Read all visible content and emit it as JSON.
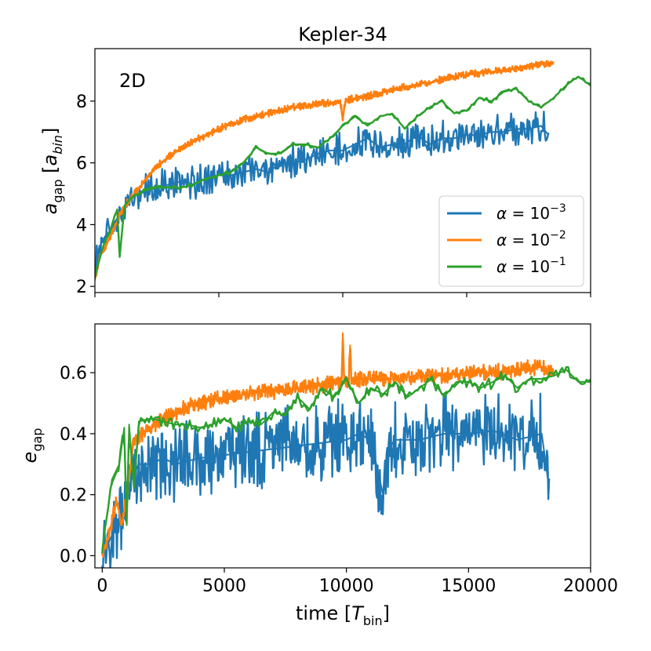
{
  "chart_data": [
    {
      "type": "line",
      "panel": "top",
      "title": "Kepler-34",
      "annotation": "2D",
      "xlabel": "",
      "ylabel": {
        "base": "a",
        "sub1": "gap",
        "bracket_open": " [",
        "unit_base": "a",
        "unit_sub": "bin",
        "bracket_close": "]"
      },
      "xlim": [
        0,
        20000
      ],
      "ylim": [
        1.8,
        9.7
      ],
      "xticks": [
        0,
        5000,
        10000,
        15000,
        20000
      ],
      "yticks": [
        2,
        4,
        6,
        8
      ],
      "ytick_labels": [
        "2",
        "4",
        "6",
        "8"
      ],
      "grid": false,
      "legend_position": "lower-right",
      "series": [
        {
          "name": "α = 10⁻³",
          "legend": {
            "alpha": "α",
            "equals": " = 10",
            "exponent": "−3"
          },
          "color": "#1f77b4",
          "x": [
            0,
            200,
            400,
            600,
            800,
            1000,
            1200,
            1500,
            1800,
            2100,
            2500,
            3000,
            3500,
            4000,
            4500,
            5000,
            5500,
            6000,
            6500,
            7000,
            7500,
            8000,
            8500,
            9000,
            9500,
            10000,
            10500,
            11000,
            11500,
            12000,
            12500,
            13000,
            13500,
            14000,
            14500,
            15000,
            15500,
            16000,
            16500,
            17000,
            17500,
            18000,
            18300
          ],
          "y": [
            2.5,
            3.3,
            3.6,
            3.8,
            4.1,
            4.3,
            4.6,
            4.9,
            5.0,
            5.1,
            5.2,
            5.3,
            5.4,
            5.3,
            5.5,
            5.6,
            5.6,
            5.7,
            5.8,
            5.7,
            6.0,
            6.0,
            6.1,
            6.3,
            6.4,
            6.4,
            6.6,
            6.8,
            6.5,
            6.6,
            6.6,
            6.9,
            6.6,
            6.8,
            6.8,
            6.9,
            6.9,
            7.0,
            7.0,
            7.1,
            7.1,
            7.2,
            6.9
          ],
          "noise": 0.42,
          "period": 110
        },
        {
          "name": "α = 10⁻²",
          "legend": {
            "alpha": "α",
            "equals": " = 10",
            "exponent": "−2"
          },
          "color": "#ff7f0e",
          "x": [
            0,
            200,
            500,
            800,
            1000,
            1300,
            1600,
            2000,
            2500,
            3000,
            3500,
            4000,
            4500,
            5000,
            5500,
            6000,
            6500,
            7000,
            7500,
            8000,
            8500,
            9000,
            9500,
            9900,
            10000,
            10100,
            10500,
            11000,
            11500,
            12000,
            12500,
            13000,
            13500,
            14000,
            14500,
            15000,
            15500,
            16000,
            16500,
            17000,
            17500,
            18000,
            18500
          ],
          "y": [
            2.2,
            3.0,
            3.4,
            3.9,
            4.3,
            4.7,
            5.0,
            5.4,
            5.9,
            6.2,
            6.5,
            6.7,
            6.9,
            7.1,
            7.25,
            7.4,
            7.5,
            7.6,
            7.7,
            7.8,
            7.85,
            7.9,
            7.95,
            8.0,
            7.4,
            8.0,
            8.1,
            8.15,
            8.25,
            8.35,
            8.45,
            8.55,
            8.6,
            8.7,
            8.8,
            8.85,
            8.9,
            8.95,
            9.0,
            9.05,
            9.1,
            9.2,
            9.2
          ],
          "noise": 0.09,
          "period": 60
        },
        {
          "name": "α = 10⁻¹",
          "legend": {
            "alpha": "α",
            "equals": " = 10",
            "exponent": "−1"
          },
          "color": "#2ca02c",
          "x": [
            0,
            300,
            600,
            900,
            1000,
            1200,
            1500,
            2000,
            2500,
            3000,
            3500,
            4000,
            4500,
            5000,
            5500,
            6000,
            6500,
            7000,
            7500,
            8000,
            8500,
            9000,
            9500,
            10000,
            10500,
            11000,
            11500,
            12000,
            12500,
            13000,
            13500,
            14000,
            14500,
            15000,
            15500,
            16000,
            16500,
            17000,
            17500,
            18000,
            18500,
            19000,
            19500,
            20000
          ],
          "y": [
            2.3,
            3.2,
            3.8,
            4.5,
            3.0,
            4.6,
            4.9,
            5.1,
            5.2,
            5.2,
            5.2,
            5.3,
            5.5,
            5.6,
            5.7,
            6.0,
            6.5,
            6.3,
            6.3,
            6.6,
            6.6,
            6.5,
            6.8,
            7.2,
            7.5,
            7.2,
            7.5,
            7.6,
            7.1,
            7.5,
            7.8,
            8.0,
            7.6,
            7.7,
            8.1,
            8.0,
            8.3,
            8.4,
            8.0,
            7.8,
            8.1,
            8.5,
            8.8,
            8.5
          ],
          "noise": 0.05,
          "period": 300
        }
      ]
    },
    {
      "type": "line",
      "panel": "bottom",
      "title": "",
      "xlabel": {
        "base": "time [",
        "t": "T",
        "sub": "bin",
        "close": "]"
      },
      "ylabel": {
        "base": "e",
        "sub": "gap"
      },
      "xlim": [
        -300,
        20000
      ],
      "ylim": [
        -0.04,
        0.76
      ],
      "xticks": [
        0,
        5000,
        10000,
        15000,
        20000
      ],
      "xtick_labels": [
        "0",
        "5000",
        "10000",
        "15000",
        "20000"
      ],
      "yticks": [
        0.0,
        0.2,
        0.4,
        0.6
      ],
      "ytick_labels": [
        "0.0",
        "0.2",
        "0.4",
        "0.6"
      ],
      "grid": false,
      "series": [
        {
          "name": "α = 10⁻³",
          "color": "#1f77b4",
          "x": [
            0,
            300,
            600,
            900,
            1200,
            1500,
            2000,
            2500,
            3000,
            3500,
            4000,
            5000,
            6000,
            7000,
            8000,
            9000,
            10000,
            10500,
            11000,
            11500,
            11800,
            12000,
            13000,
            14000,
            15000,
            16000,
            17000,
            18000,
            18300
          ],
          "y": [
            0.0,
            0.05,
            0.1,
            0.15,
            0.25,
            0.3,
            0.3,
            0.32,
            0.3,
            0.31,
            0.32,
            0.33,
            0.34,
            0.35,
            0.36,
            0.37,
            0.38,
            0.4,
            0.38,
            0.2,
            0.36,
            0.38,
            0.38,
            0.4,
            0.4,
            0.41,
            0.38,
            0.4,
            0.22
          ],
          "noise": 0.1,
          "period": 90
        },
        {
          "name": "α = 10⁻²",
          "color": "#ff7f0e",
          "x": [
            0,
            300,
            600,
            800,
            1000,
            1300,
            1600,
            2000,
            2500,
            3000,
            3500,
            4000,
            5000,
            6000,
            7000,
            8000,
            9000,
            9800,
            9850,
            9900,
            10000,
            10100,
            10150,
            10200,
            10400,
            11000,
            12000,
            13000,
            14000,
            15000,
            16000,
            17000,
            18000,
            18500
          ],
          "y": [
            0.0,
            0.08,
            0.18,
            0.1,
            0.2,
            0.38,
            0.4,
            0.42,
            0.45,
            0.47,
            0.49,
            0.5,
            0.52,
            0.53,
            0.54,
            0.55,
            0.56,
            0.57,
            0.73,
            0.58,
            0.57,
            0.58,
            0.69,
            0.58,
            0.58,
            0.58,
            0.58,
            0.59,
            0.59,
            0.6,
            0.6,
            0.61,
            0.62,
            0.6
          ],
          "noise": 0.02,
          "period": 50
        },
        {
          "name": "α = 10⁻¹",
          "color": "#2ca02c",
          "x": [
            0,
            400,
            700,
            900,
            1000,
            1100,
            1300,
            1500,
            2000,
            2500,
            3000,
            3500,
            4000,
            4500,
            5000,
            5500,
            6000,
            6500,
            7000,
            7500,
            8000,
            8500,
            9000,
            9500,
            10000,
            10500,
            11000,
            11500,
            12000,
            12500,
            13000,
            13500,
            14000,
            14500,
            15000,
            15500,
            16000,
            16500,
            17000,
            17500,
            18000,
            18500,
            19000,
            19500,
            20000
          ],
          "y": [
            0.02,
            0.25,
            0.3,
            0.42,
            0.1,
            0.43,
            0.22,
            0.44,
            0.45,
            0.44,
            0.43,
            0.43,
            0.42,
            0.43,
            0.45,
            0.42,
            0.44,
            0.43,
            0.47,
            0.46,
            0.52,
            0.48,
            0.55,
            0.52,
            0.58,
            0.5,
            0.55,
            0.53,
            0.57,
            0.52,
            0.55,
            0.58,
            0.52,
            0.57,
            0.57,
            0.55,
            0.57,
            0.59,
            0.55,
            0.58,
            0.58,
            0.59,
            0.61,
            0.57,
            0.57
          ],
          "noise": 0.015,
          "period": 250
        }
      ]
    }
  ]
}
